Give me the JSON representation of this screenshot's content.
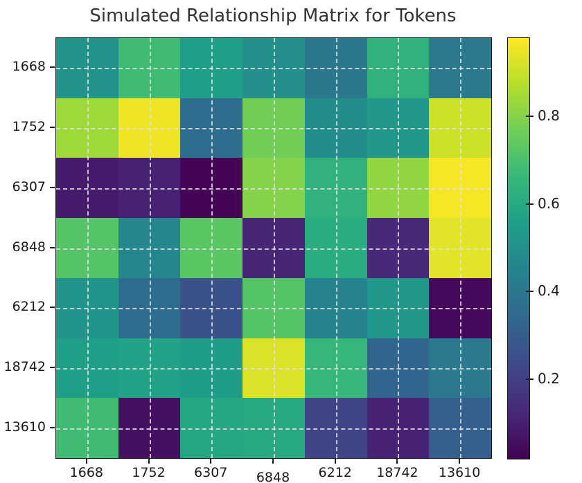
{
  "chart_data": {
    "type": "heatmap",
    "title": "Simulated Relationship Matrix for Tokens",
    "x_labels": [
      "1668",
      "1752",
      "6307",
      "6848",
      "6212",
      "18742",
      "13610"
    ],
    "y_labels": [
      "1668",
      "1752",
      "6307",
      "6848",
      "6212",
      "18742",
      "13610"
    ],
    "values": [
      [
        0.51,
        0.68,
        0.56,
        0.5,
        0.4,
        0.64,
        0.41
      ],
      [
        0.84,
        0.96,
        0.36,
        0.77,
        0.49,
        0.53,
        0.91
      ],
      [
        0.09,
        0.11,
        0.03,
        0.8,
        0.64,
        0.82,
        0.97
      ],
      [
        0.72,
        0.46,
        0.73,
        0.12,
        0.61,
        0.13,
        0.94
      ],
      [
        0.52,
        0.36,
        0.26,
        0.72,
        0.45,
        0.53,
        0.04
      ],
      [
        0.56,
        0.57,
        0.55,
        0.93,
        0.66,
        0.33,
        0.41
      ],
      [
        0.68,
        0.06,
        0.59,
        0.6,
        0.22,
        0.11,
        0.31
      ]
    ],
    "colorbar": {
      "vmin": 0.02,
      "vmax": 0.98,
      "ticks": [
        0.2,
        0.4,
        0.6,
        0.8
      ],
      "tick_labels": [
        "0.2",
        "0.4",
        "0.6",
        "0.8"
      ],
      "position": "right"
    },
    "colormap": {
      "name": "viridis",
      "anchors": [
        {
          "t": 0.0,
          "color": "#440154"
        },
        {
          "t": 0.111,
          "color": "#482878"
        },
        {
          "t": 0.222,
          "color": "#3e4989"
        },
        {
          "t": 0.333,
          "color": "#31688e"
        },
        {
          "t": 0.444,
          "color": "#26828e"
        },
        {
          "t": 0.556,
          "color": "#1f9e89"
        },
        {
          "t": 0.667,
          "color": "#35b779"
        },
        {
          "t": 0.778,
          "color": "#6ece58"
        },
        {
          "t": 0.889,
          "color": "#b5de2b"
        },
        {
          "t": 1.0,
          "color": "#fde725"
        }
      ]
    },
    "grid": {
      "visible": true,
      "style": "dashed",
      "color": "#e0e0e0"
    },
    "layout": {
      "x_tick_offset_label": "6848"
    },
    "title_color": "#333333",
    "text_color": "#1a1a1a",
    "spine_color": "#1a1a1a"
  }
}
